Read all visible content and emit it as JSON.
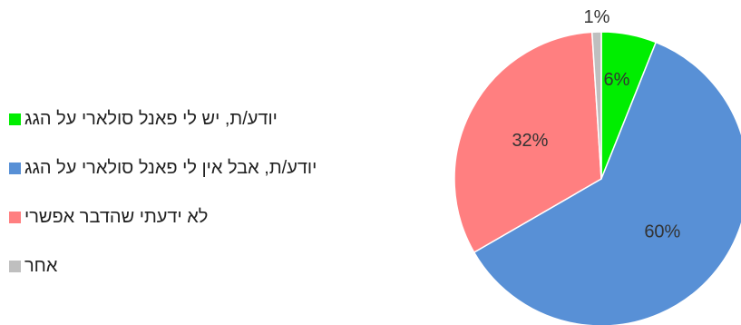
{
  "chart_data": {
    "type": "pie",
    "categories": [
      "יודע/ת, יש לי פאנל סולארי על הגג",
      "יודע/ת, אבל אין לי פאנל סולארי על הגג",
      "לא ידעתי שהדבר אפשרי",
      "אחר"
    ],
    "values": [
      6,
      60,
      32,
      1
    ],
    "data_labels": [
      "6%",
      "60%",
      "32%",
      "1%"
    ],
    "colors": [
      "#00ee00",
      "#5890d6",
      "#ff7f80",
      "#bfbfbf"
    ],
    "legend_position": "left",
    "title": ""
  }
}
